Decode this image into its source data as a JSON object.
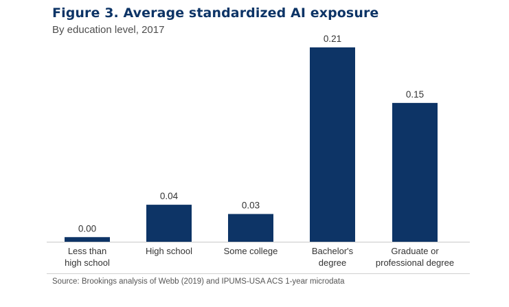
{
  "header": {
    "title": "Figure 3. Average standardized AI exposure",
    "subtitle": "By education level, 2017"
  },
  "colors": {
    "bar": "#0d3466",
    "title": "#0d3466",
    "axis": "#c8c8c8"
  },
  "chart_data": {
    "type": "bar",
    "title": "Figure 3. Average standardized AI exposure",
    "subtitle": "By education level, 2017",
    "xlabel": "",
    "ylabel": "",
    "ylim": [
      0,
      0.21
    ],
    "grid": false,
    "categories": [
      [
        "Less than",
        "high school"
      ],
      [
        "High school"
      ],
      [
        "Some college"
      ],
      [
        "Bachelor's",
        "degree"
      ],
      [
        "Graduate or",
        "professional degree"
      ]
    ],
    "values": [
      0.005,
      0.04,
      0.03,
      0.21,
      0.15
    ],
    "data_labels": [
      "0.00",
      "0.04",
      "0.03",
      "0.21",
      "0.15"
    ]
  },
  "footer": {
    "source": "Source: Brookings analysis of Webb (2019) and IPUMS-USA ACS 1-year microdata"
  }
}
